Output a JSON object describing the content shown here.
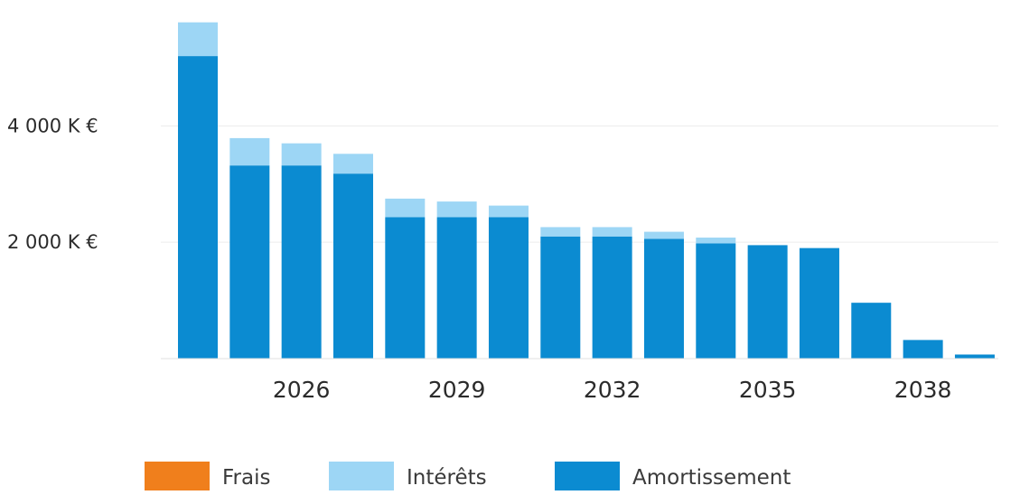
{
  "chart_data": {
    "type": "bar",
    "stacked": true,
    "x": [
      2024,
      2025,
      2026,
      2027,
      2028,
      2029,
      2030,
      2031,
      2032,
      2033,
      2034,
      2035,
      2036,
      2037,
      2038,
      2039
    ],
    "xticks": [
      "2026",
      "2029",
      "2032",
      "2035",
      "2038"
    ],
    "yticks": [
      "2 000 K €",
      "4 000 K €"
    ],
    "ylim": [
      0,
      5900
    ],
    "series": [
      {
        "name": "Frais",
        "color": "#f07f1c",
        "values": [
          0,
          0,
          0,
          0,
          0,
          0,
          0,
          0,
          0,
          0,
          0,
          0,
          0,
          0,
          0,
          0
        ]
      },
      {
        "name": "Amortissement",
        "color": "#0b8bd1",
        "values": [
          5200,
          3320,
          3320,
          3180,
          2430,
          2430,
          2430,
          2100,
          2100,
          2060,
          1980,
          1950,
          1900,
          960,
          320,
          70
        ]
      },
      {
        "name": "Intérêts",
        "color": "#9dd6f5",
        "values": [
          580,
          470,
          380,
          340,
          320,
          270,
          200,
          160,
          160,
          120,
          100,
          0,
          0,
          0,
          0,
          0
        ]
      }
    ],
    "legend_order": [
      "Frais",
      "Intérêts",
      "Amortissement"
    ],
    "grid": true,
    "legend_position": "bottom"
  }
}
